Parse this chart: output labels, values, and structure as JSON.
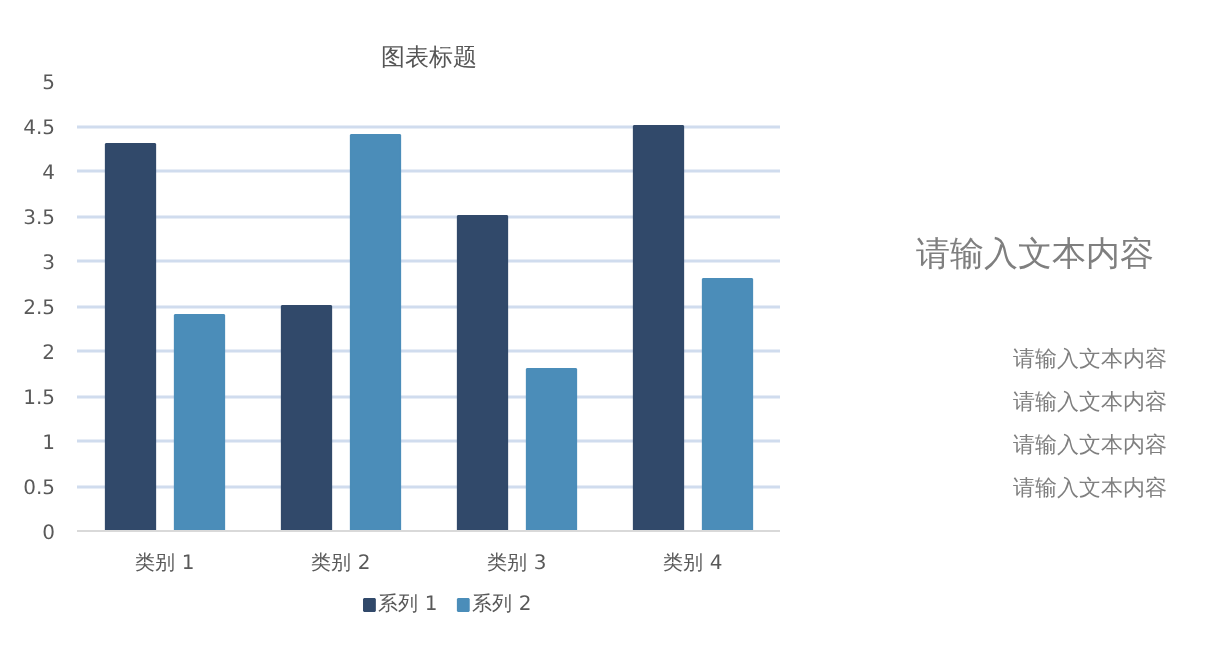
{
  "chart_data": {
    "type": "bar",
    "title": "图表标题",
    "categories": [
      "类别 1",
      "类别 2",
      "类别 3",
      "类别 4"
    ],
    "series": [
      {
        "name": "系列 1",
        "color": "#31496a",
        "values": [
          4.3,
          2.5,
          3.5,
          4.5
        ]
      },
      {
        "name": "系列 2",
        "color": "#4b8db9",
        "values": [
          2.4,
          4.4,
          1.8,
          2.8
        ]
      }
    ],
    "ylim": [
      0,
      5
    ],
    "yticks": [
      0,
      0.5,
      1,
      1.5,
      2,
      2.5,
      3,
      3.5,
      4,
      4.5,
      5
    ],
    "grid": "y",
    "legend": "bottom",
    "annotations": [
      "请输入文本内容",
      "请输入文本内容",
      "请输入文本内容",
      "请输入文本内容",
      "请输入文本内容"
    ]
  }
}
